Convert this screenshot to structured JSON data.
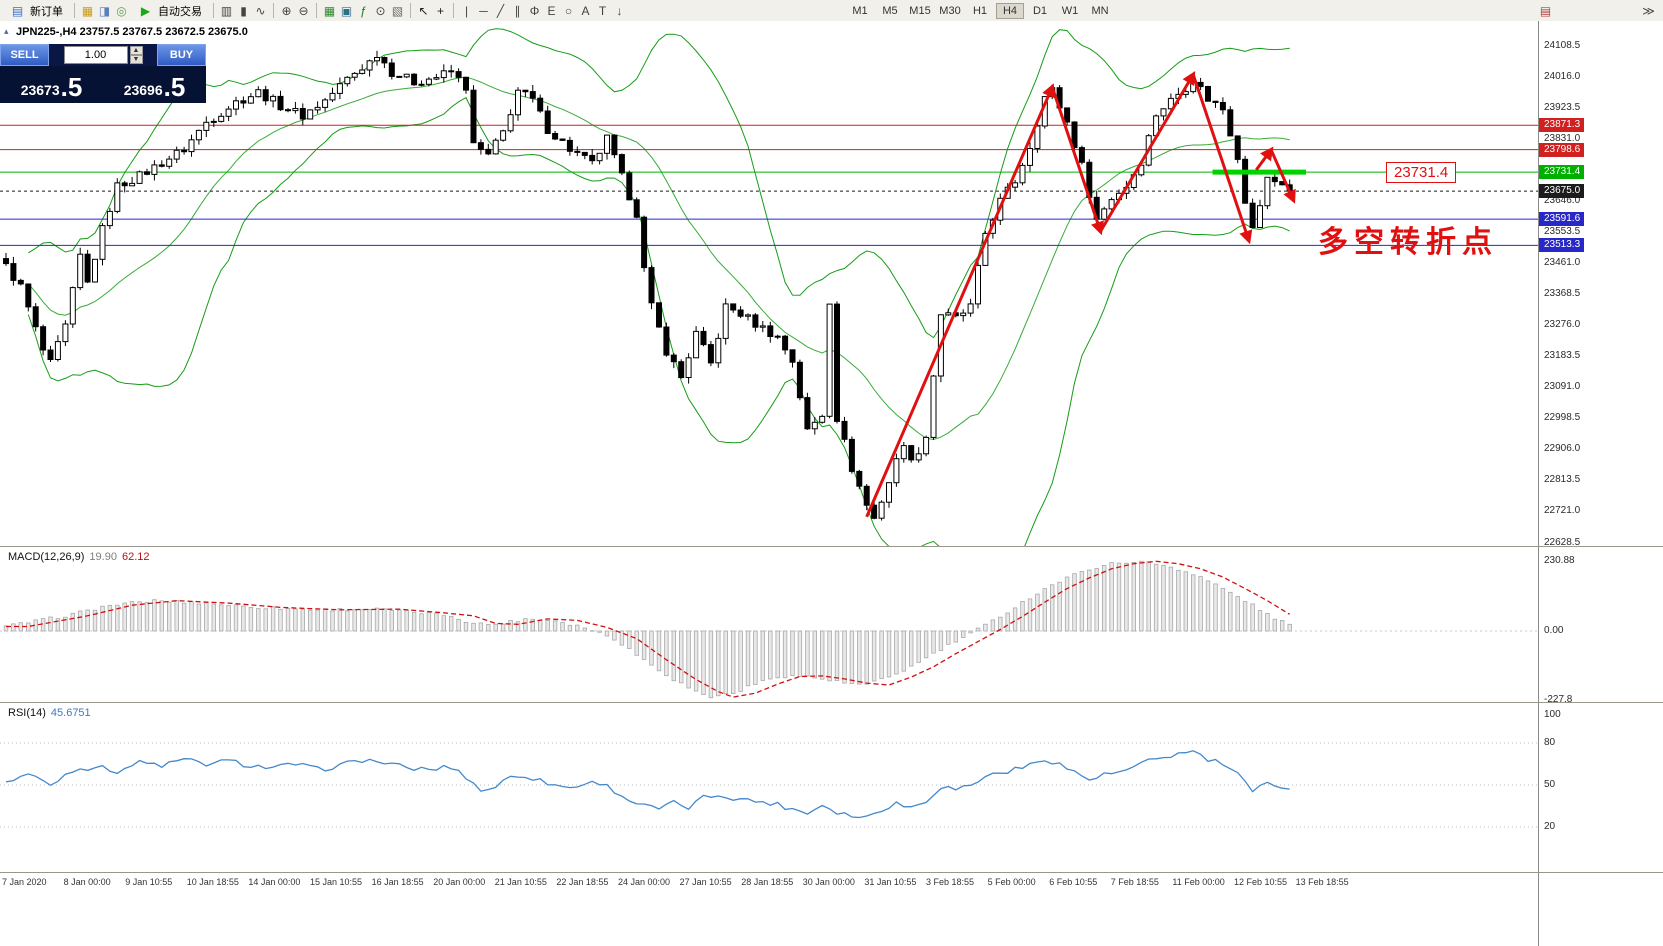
{
  "toolbar": {
    "new_order": {
      "label": "新订单"
    },
    "autotrading": {
      "label": "自动交易"
    },
    "timeframes": {
      "items": [
        "M1",
        "M5",
        "M15",
        "M30",
        "H1",
        "H4",
        "D1",
        "W1",
        "MN"
      ],
      "active": "H4"
    },
    "icons_left": [
      {
        "name": "market-watch-icon",
        "glyph": "▦",
        "color": "#c89a1e"
      },
      {
        "name": "data-window-icon",
        "glyph": "◨",
        "color": "#5a7fbf"
      },
      {
        "name": "navigator-icon",
        "glyph": "◎",
        "color": "#5aa05a"
      }
    ],
    "icons_chart_type": [
      {
        "name": "bar-chart-icon",
        "glyph": "▥",
        "color": "#444444"
      },
      {
        "name": "candlestick-chart-icon",
        "glyph": "▮",
        "color": "#444444"
      },
      {
        "name": "line-chart-icon",
        "glyph": "∿",
        "color": "#444444"
      }
    ],
    "icons_zoom": [
      {
        "name": "zoom-in-icon",
        "glyph": "⊕",
        "color": "#444444"
      },
      {
        "name": "zoom-out-icon",
        "glyph": "⊖",
        "color": "#444444"
      }
    ],
    "icons_windows": [
      {
        "name": "tile-windows-icon",
        "glyph": "▦",
        "color": "#2e8b2e"
      },
      {
        "name": "new-chart-icon",
        "glyph": "▣",
        "color": "#2e6e8b"
      },
      {
        "name": "indicators-icon",
        "glyph": "ƒ",
        "color": "#1e7a1e"
      },
      {
        "name": "periods-icon",
        "glyph": "⊙",
        "color": "#444444"
      },
      {
        "name": "templates-icon",
        "glyph": "▧",
        "color": "#6a6a6a"
      }
    ],
    "icons_cursor": [
      {
        "name": "cursor-icon",
        "glyph": "↖",
        "color": "#222222"
      },
      {
        "name": "crosshair-icon",
        "glyph": "+",
        "color": "#222222"
      }
    ],
    "icons_draw": [
      {
        "name": "vertical-line-icon",
        "glyph": "|",
        "color": "#444444"
      },
      {
        "name": "horizontal-line-icon",
        "glyph": "─",
        "color": "#444444"
      },
      {
        "name": "trendline-icon",
        "glyph": "╱",
        "color": "#444444"
      },
      {
        "name": "channel-icon",
        "glyph": "∥",
        "color": "#444444"
      },
      {
        "name": "fibonacci-icon",
        "glyph": "Φ",
        "color": "#444444"
      },
      {
        "name": "elliott-icon",
        "glyph": "E",
        "color": "#444444"
      },
      {
        "name": "shapes-icon",
        "glyph": "○",
        "color": "#444444"
      },
      {
        "name": "text-icon",
        "glyph": "A",
        "color": "#444444"
      },
      {
        "name": "label-icon",
        "glyph": "T",
        "color": "#444444"
      },
      {
        "name": "arrows-icon",
        "glyph": "↓",
        "color": "#444444"
      }
    ],
    "icons_right": [
      {
        "name": "news-icon",
        "glyph": "▤",
        "color": "#b04040"
      },
      {
        "name": "scroll-to-end-icon",
        "glyph": "≫",
        "color": "#444444"
      }
    ]
  },
  "chart": {
    "title": "JPN225-,H4 23757.5 23767.5 23672.5 23675.0",
    "annotation": "多空转折点",
    "price_tag_label": "23731.4"
  },
  "trade_panel": {
    "sell_label": "SELL",
    "buy_label": "BUY",
    "volume": "1.00",
    "sell_price_int": "23673",
    "sell_price_frac": ".5",
    "buy_price_int": "23696",
    "buy_price_frac": ".5"
  },
  "macd_panel": {
    "name": "MACD(12,26,9)",
    "value_main": "19.90",
    "value_signal": "62.12",
    "axis": [
      "230.88",
      "0.00",
      "-227.8"
    ]
  },
  "rsi_panel": {
    "name": "RSI(14)",
    "value": "45.6751",
    "axis": [
      "100",
      "80",
      "50",
      "20"
    ]
  },
  "chart_data": {
    "type": "candlestick",
    "symbol": "JPN225-",
    "timeframe": "H4",
    "ohlc_current": {
      "open": 23757.5,
      "high": 23767.5,
      "low": 23672.5,
      "close": 23675.0
    },
    "bars": 174,
    "y_axis": {
      "min": 22628.5,
      "max": 24108.5,
      "tick_step": 92.5
    },
    "colors": {
      "up": "#ffffff",
      "down": "#000000",
      "band": "#169c16",
      "arrow": "#e01010",
      "signal": "#d01010",
      "rsi": "#4488cc"
    },
    "close_path_anchors": [
      [
        0,
        23450
      ],
      [
        2,
        23390
      ],
      [
        5,
        23200
      ],
      [
        6,
        23160
      ],
      [
        8,
        23270
      ],
      [
        10,
        23480
      ],
      [
        11,
        23400
      ],
      [
        13,
        23560
      ],
      [
        15,
        23690
      ],
      [
        18,
        23720
      ],
      [
        21,
        23760
      ],
      [
        24,
        23800
      ],
      [
        27,
        23880
      ],
      [
        31,
        23940
      ],
      [
        34,
        23970
      ],
      [
        37,
        23930
      ],
      [
        40,
        23900
      ],
      [
        43,
        23945
      ],
      [
        46,
        24010
      ],
      [
        49,
        24060
      ],
      [
        50,
        24085
      ],
      [
        52,
        24030
      ],
      [
        55,
        24000
      ],
      [
        58,
        24015
      ],
      [
        60,
        24030
      ],
      [
        62,
        23985
      ],
      [
        63,
        23810
      ],
      [
        65,
        23780
      ],
      [
        67,
        23850
      ],
      [
        69,
        23975
      ],
      [
        71,
        23945
      ],
      [
        73,
        23860
      ],
      [
        76,
        23800
      ],
      [
        79,
        23755
      ],
      [
        81,
        23830
      ],
      [
        83,
        23715
      ],
      [
        85,
        23610
      ],
      [
        86,
        23440
      ],
      [
        87,
        23330
      ],
      [
        89,
        23200
      ],
      [
        91,
        23120
      ],
      [
        93,
        23250
      ],
      [
        95,
        23160
      ],
      [
        97,
        23330
      ],
      [
        99,
        23310
      ],
      [
        101,
        23280
      ],
      [
        104,
        23240
      ],
      [
        106,
        23170
      ],
      [
        108,
        22960
      ],
      [
        110,
        23010
      ],
      [
        111,
        23350
      ],
      [
        112,
        23000
      ],
      [
        114,
        22850
      ],
      [
        116,
        22740
      ],
      [
        117,
        22700
      ],
      [
        119,
        22810
      ],
      [
        121,
        22930
      ],
      [
        122,
        22865
      ],
      [
        124,
        22945
      ],
      [
        126,
        23310
      ],
      [
        128,
        23295
      ],
      [
        130,
        23330
      ],
      [
        132,
        23550
      ],
      [
        134,
        23645
      ],
      [
        136,
        23705
      ],
      [
        138,
        23810
      ],
      [
        140,
        23955
      ],
      [
        141,
        23975
      ],
      [
        143,
        23880
      ],
      [
        145,
        23750
      ],
      [
        147,
        23590
      ],
      [
        149,
        23655
      ],
      [
        151,
        23690
      ],
      [
        153,
        23765
      ],
      [
        155,
        23905
      ],
      [
        157,
        23945
      ],
      [
        159,
        23985
      ],
      [
        160,
        24010
      ],
      [
        162,
        23950
      ],
      [
        164,
        23920
      ],
      [
        166,
        23780
      ],
      [
        167,
        23650
      ],
      [
        168,
        23560
      ],
      [
        170,
        23710
      ],
      [
        172,
        23700
      ],
      [
        173,
        23675
      ]
    ],
    "bollinger": {
      "period": 20,
      "deviation": 2
    },
    "levels": [
      {
        "price": 23871.3,
        "color": "#d02020",
        "type": "resistance"
      },
      {
        "price": 23798.6,
        "color": "#d02020",
        "type": "resistance"
      },
      {
        "price": 23731.4,
        "color": "#00b000",
        "type": "pivot"
      },
      {
        "price": 23675.0,
        "color": "#1c1c1c",
        "type": "bid"
      },
      {
        "price": 23591.6,
        "color": "#2828c8",
        "type": "support"
      },
      {
        "price": 23513.3,
        "color": "#2828c8",
        "type": "support"
      }
    ],
    "trend_arrows": [
      [
        116,
        22705,
        141,
        23985
      ],
      [
        141,
        23985,
        147.5,
        23555
      ],
      [
        147.5,
        23555,
        160,
        24022
      ],
      [
        160,
        24022,
        167.5,
        23528
      ],
      [
        168.5,
        23738,
        170.5,
        23798
      ],
      [
        170.5,
        23798,
        173.5,
        23648
      ]
    ],
    "pivot_line": {
      "price": 23731.4,
      "from_bar": 162.6,
      "to_bar": 175.2,
      "color": "#00d200"
    },
    "macd": {
      "params": "12,26,9",
      "current_main": 19.9,
      "current_signal": 62.12,
      "range_max": 230.88,
      "range_min": -227.8,
      "anchors": [
        [
          0,
          15
        ],
        [
          8,
          50
        ],
        [
          14,
          85
        ],
        [
          20,
          100
        ],
        [
          27,
          92
        ],
        [
          34,
          78
        ],
        [
          42,
          70
        ],
        [
          50,
          72
        ],
        [
          56,
          60
        ],
        [
          60,
          50
        ],
        [
          63,
          25
        ],
        [
          66,
          22
        ],
        [
          70,
          40
        ],
        [
          74,
          35
        ],
        [
          78,
          12
        ],
        [
          82,
          -25
        ],
        [
          86,
          -95
        ],
        [
          90,
          -160
        ],
        [
          93,
          -200
        ],
        [
          95,
          -218
        ],
        [
          98,
          -205
        ],
        [
          101,
          -175
        ],
        [
          104,
          -150
        ],
        [
          107,
          -148
        ],
        [
          110,
          -158
        ],
        [
          113,
          -172
        ],
        [
          116,
          -178
        ],
        [
          119,
          -152
        ],
        [
          122,
          -118
        ],
        [
          125,
          -75
        ],
        [
          128,
          -35
        ],
        [
          131,
          5
        ],
        [
          134,
          48
        ],
        [
          137,
          95
        ],
        [
          140,
          140
        ],
        [
          143,
          175
        ],
        [
          146,
          205
        ],
        [
          149,
          222
        ],
        [
          152,
          230
        ],
        [
          155,
          222
        ],
        [
          158,
          205
        ],
        [
          161,
          178
        ],
        [
          164,
          140
        ],
        [
          167,
          100
        ],
        [
          170,
          55
        ],
        [
          173,
          20
        ]
      ]
    },
    "rsi": {
      "period": 14,
      "current": 45.6751,
      "levels": [
        80,
        50,
        20
      ],
      "anchors": [
        [
          0,
          52
        ],
        [
          3,
          58
        ],
        [
          6,
          50
        ],
        [
          9,
          61
        ],
        [
          12,
          63
        ],
        [
          15,
          60
        ],
        [
          18,
          66
        ],
        [
          21,
          64
        ],
        [
          24,
          68
        ],
        [
          27,
          65
        ],
        [
          30,
          67
        ],
        [
          33,
          64
        ],
        [
          36,
          62
        ],
        [
          39,
          65
        ],
        [
          42,
          61
        ],
        [
          45,
          64
        ],
        [
          48,
          68
        ],
        [
          51,
          66
        ],
        [
          54,
          62
        ],
        [
          57,
          61
        ],
        [
          60,
          63
        ],
        [
          62,
          56
        ],
        [
          64,
          46
        ],
        [
          66,
          49
        ],
        [
          68,
          56
        ],
        [
          70,
          57
        ],
        [
          72,
          53
        ],
        [
          74,
          50
        ],
        [
          76,
          48
        ],
        [
          78,
          51
        ],
        [
          80,
          52
        ],
        [
          82,
          46
        ],
        [
          84,
          39
        ],
        [
          86,
          35
        ],
        [
          88,
          33
        ],
        [
          90,
          37
        ],
        [
          92,
          34
        ],
        [
          94,
          41
        ],
        [
          96,
          43
        ],
        [
          98,
          41
        ],
        [
          100,
          39
        ],
        [
          102,
          38
        ],
        [
          104,
          36
        ],
        [
          106,
          33
        ],
        [
          108,
          30
        ],
        [
          110,
          36
        ],
        [
          112,
          31
        ],
        [
          114,
          28
        ],
        [
          116,
          27
        ],
        [
          118,
          33
        ],
        [
          120,
          37
        ],
        [
          122,
          34
        ],
        [
          124,
          39
        ],
        [
          126,
          49
        ],
        [
          128,
          47
        ],
        [
          130,
          50
        ],
        [
          132,
          56
        ],
        [
          134,
          59
        ],
        [
          136,
          61
        ],
        [
          138,
          64
        ],
        [
          140,
          69
        ],
        [
          142,
          65
        ],
        [
          144,
          59
        ],
        [
          146,
          54
        ],
        [
          148,
          57
        ],
        [
          150,
          59
        ],
        [
          152,
          62
        ],
        [
          154,
          67
        ],
        [
          156,
          70
        ],
        [
          158,
          72
        ],
        [
          160,
          74
        ],
        [
          162,
          68
        ],
        [
          164,
          65
        ],
        [
          166,
          58
        ],
        [
          168,
          44
        ],
        [
          170,
          53
        ],
        [
          172,
          49
        ],
        [
          173,
          46
        ]
      ]
    },
    "x_labels": [
      "7 Jan 2020",
      "8 Jan 00:00",
      "9 Jan 10:55",
      "10 Jan 18:55",
      "14 Jan 00:00",
      "15 Jan 10:55",
      "16 Jan 18:55",
      "20 Jan 00:00",
      "21 Jan 10:55",
      "22 Jan 18:55",
      "24 Jan 00:00",
      "27 Jan 10:55",
      "28 Jan 18:55",
      "30 Jan 00:00",
      "31 Jan 10:55",
      "3 Feb 18:55",
      "5 Feb 00:00",
      "6 Feb 10:55",
      "7 Feb 18:55",
      "11 Feb 00:00",
      "12 Feb 10:55",
      "13 Feb 18:55"
    ]
  }
}
